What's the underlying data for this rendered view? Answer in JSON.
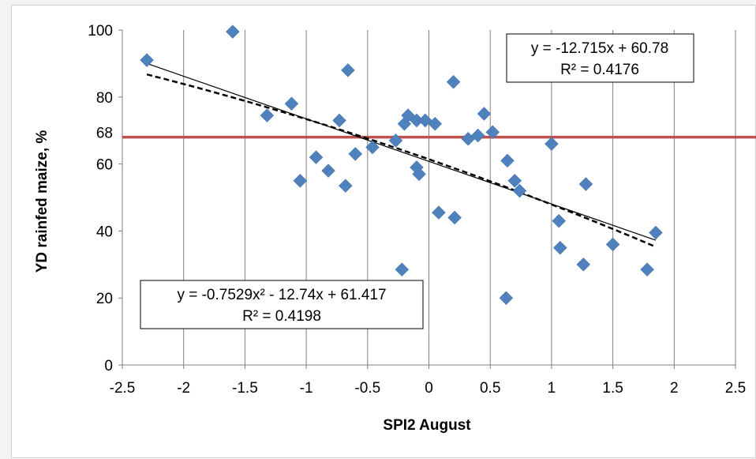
{
  "chart_data": {
    "type": "scatter",
    "xlabel": "SPI2 August",
    "ylabel": "YD rainfed maize, %",
    "xlim": [
      -2.5,
      2.5
    ],
    "ylim": [
      0,
      100
    ],
    "x_ticks": [
      "-2.5",
      "-2",
      "-1.5",
      "-1",
      "-0.5",
      "0",
      "0.5",
      "1",
      "1.5",
      "2",
      "2.5"
    ],
    "y_ticks": [
      "0",
      "20",
      "40",
      "60",
      "80",
      "100"
    ],
    "extra_y_tick": "68",
    "grid": "vertical",
    "reference_line": {
      "y": 68,
      "color": "#c0504d"
    },
    "marker_color": "#4f81bd",
    "points": [
      [
        -2.3,
        91
      ],
      [
        -1.6,
        99.5
      ],
      [
        -1.32,
        74.5
      ],
      [
        -1.12,
        78
      ],
      [
        -1.05,
        55
      ],
      [
        -0.92,
        62
      ],
      [
        -0.82,
        58
      ],
      [
        -0.73,
        73
      ],
      [
        -0.68,
        53.5
      ],
      [
        -0.66,
        88
      ],
      [
        -0.6,
        63
      ],
      [
        -0.46,
        65
      ],
      [
        -0.27,
        67
      ],
      [
        -0.22,
        28.5
      ],
      [
        -0.2,
        72
      ],
      [
        -0.17,
        74.5
      ],
      [
        -0.1,
        59
      ],
      [
        -0.1,
        73
      ],
      [
        -0.08,
        57
      ],
      [
        -0.03,
        73
      ],
      [
        0.05,
        72
      ],
      [
        0.08,
        45.5
      ],
      [
        0.2,
        84.5
      ],
      [
        0.21,
        44
      ],
      [
        0.32,
        67.5
      ],
      [
        0.4,
        68.5
      ],
      [
        0.45,
        75
      ],
      [
        0.52,
        69.5
      ],
      [
        0.63,
        20
      ],
      [
        0.64,
        61
      ],
      [
        0.7,
        55
      ],
      [
        0.74,
        52
      ],
      [
        1.0,
        66
      ],
      [
        1.06,
        43
      ],
      [
        1.07,
        35
      ],
      [
        1.26,
        30
      ],
      [
        1.28,
        54
      ],
      [
        1.5,
        36
      ],
      [
        1.78,
        28.5
      ],
      [
        1.85,
        39.5
      ]
    ],
    "series": [
      {
        "type": "linear_trend",
        "style": "solid",
        "equation": "y = -12.715x + 60.78",
        "r2": "R² = 0.4176",
        "coefficients": {
          "a": -12.715,
          "b": 60.78
        },
        "x_range": [
          -2.3,
          1.85
        ]
      },
      {
        "type": "polynomial_trend",
        "style": "dashed",
        "equation": "y = -0.7529x² - 12.74x + 61.417",
        "r2": "R² = 0.4198",
        "coefficients": {
          "a": -0.7529,
          "b": -12.74,
          "c": 61.417
        },
        "x_range": [
          -2.3,
          1.85
        ]
      }
    ]
  }
}
